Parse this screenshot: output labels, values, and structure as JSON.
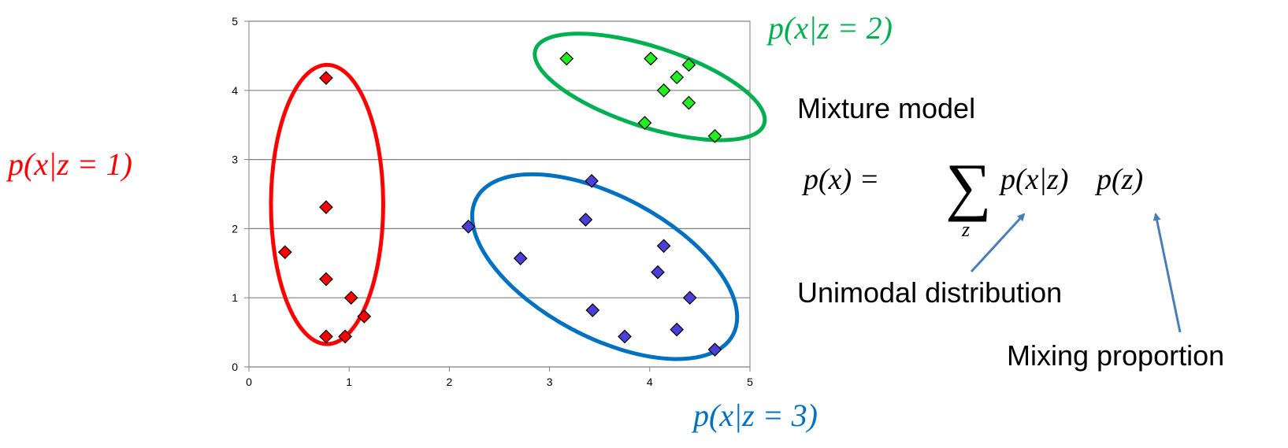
{
  "chart_data": {
    "type": "scatter",
    "xlim": [
      0,
      5
    ],
    "ylim": [
      0,
      5
    ],
    "x_ticks": [
      "0",
      "1",
      "2",
      "3",
      "4",
      "5"
    ],
    "y_ticks": [
      "0",
      "1",
      "2",
      "3",
      "4",
      "5"
    ],
    "grid": "horizontal",
    "series": [
      {
        "color": "#ff0000",
        "points": [
          [
            0.77,
            4.18
          ],
          [
            0.77,
            2.31
          ],
          [
            0.36,
            1.66
          ],
          [
            0.77,
            1.27
          ],
          [
            1.02,
            1.0
          ],
          [
            1.15,
            0.73
          ],
          [
            0.77,
            0.44
          ],
          [
            0.96,
            0.44
          ]
        ]
      },
      {
        "color": "#22ee22",
        "points": [
          [
            3.17,
            4.46
          ],
          [
            4.01,
            4.46
          ],
          [
            4.39,
            4.37
          ],
          [
            4.27,
            4.19
          ],
          [
            4.14,
            4.0
          ],
          [
            4.39,
            3.82
          ],
          [
            3.95,
            3.53
          ],
          [
            4.65,
            3.34
          ]
        ]
      },
      {
        "color": "#4b3fd8",
        "points": [
          [
            3.42,
            2.69
          ],
          [
            2.19,
            2.03
          ],
          [
            3.36,
            2.13
          ],
          [
            4.14,
            1.75
          ],
          [
            2.71,
            1.57
          ],
          [
            4.08,
            1.37
          ],
          [
            4.4,
            1.0
          ],
          [
            3.43,
            0.82
          ],
          [
            3.75,
            0.44
          ],
          [
            4.27,
            0.54
          ],
          [
            4.65,
            0.25
          ]
        ]
      }
    ],
    "clusters": [
      {
        "id": "z1",
        "color": "#ff0000",
        "label": "p(x|z = 1)"
      },
      {
        "id": "z2",
        "color": "#00b050",
        "label": "p(x|z = 2)"
      },
      {
        "id": "z3",
        "color": "#0070c0",
        "label": "p(x|z = 3)"
      }
    ]
  },
  "annotations": {
    "mixture_title": "Mixture model",
    "formula_lhs": "p(x) =",
    "formula_sum_sub": "z",
    "formula_component": "p(x|z)",
    "formula_prior": "p(z)",
    "unimodal_label": "Unimodal distribution",
    "mixing_label": "Mixing proportion",
    "arrow_color": "#4a7ebb"
  }
}
